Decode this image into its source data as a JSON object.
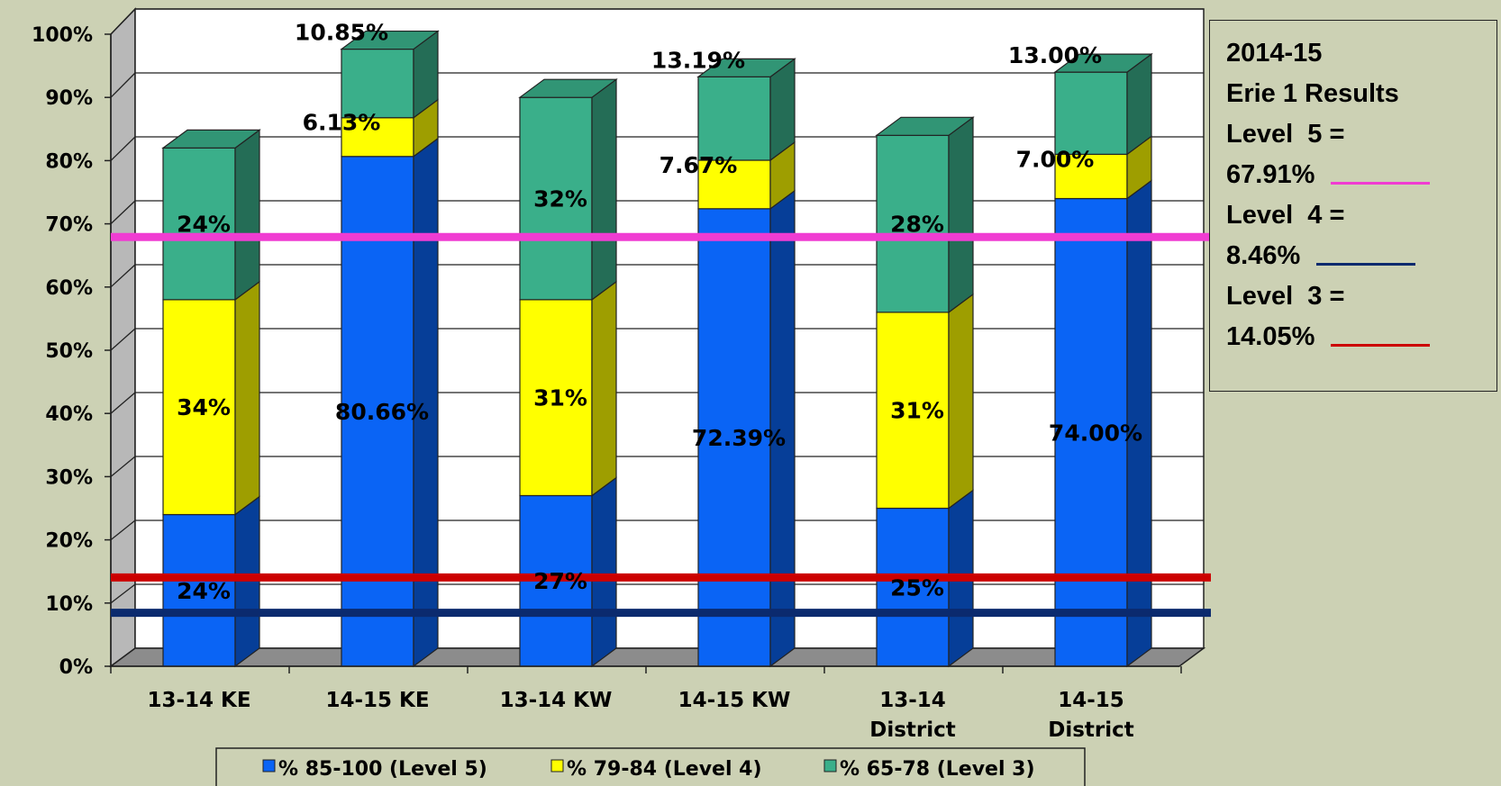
{
  "chart_data": {
    "type": "bar",
    "stacked": true,
    "categories": [
      [
        "13-14 KE"
      ],
      [
        "14-15 KE"
      ],
      [
        "13-14 KW"
      ],
      [
        "14-15 KW"
      ],
      [
        "13-14",
        "District"
      ],
      [
        "14-15",
        "District"
      ]
    ],
    "series": [
      {
        "name": "% 85-100 (Level 5)",
        "color": "#0a64f5",
        "values": [
          24,
          80.66,
          27,
          72.39,
          25,
          74.0
        ],
        "labels": [
          "24%",
          "80.66%",
          "27%",
          "72.39%",
          "25%",
          "74.00%"
        ]
      },
      {
        "name": "% 79-84 (Level 4)",
        "color": "#ffff00",
        "values": [
          34,
          6.13,
          31,
          7.67,
          31,
          7.0
        ],
        "labels": [
          "34%",
          "6.13%",
          "31%",
          "7.67%",
          "31%",
          "7.00%"
        ]
      },
      {
        "name": "% 65-78 (Level 3)",
        "color": "#3aaf8a",
        "values": [
          24,
          10.85,
          32,
          13.19,
          28,
          13.0
        ],
        "labels": [
          "24%",
          "10.85%",
          "32%",
          "13.19%",
          "28%",
          "13.00%"
        ]
      }
    ],
    "yticks": [
      "0%",
      "10%",
      "20%",
      "30%",
      "40%",
      "50%",
      "60%",
      "70%",
      "80%",
      "90%",
      "100%"
    ],
    "ylim": [
      0,
      100
    ],
    "grid": true,
    "legend_position": "bottom",
    "reference_lines": [
      {
        "value": 67.91,
        "color": "#f03cd2"
      },
      {
        "value": 14.05,
        "color": "#cc0000"
      },
      {
        "value": 8.46,
        "color": "#0b2a6e"
      }
    ]
  },
  "info_box": {
    "title": "2014-15",
    "subtitle": "Erie 1 Results",
    "level5_label": "Level  5 =",
    "level5_value": "67.91%",
    "level5_color": "#f03cd2",
    "level4_label": "Level  4 =",
    "level4_value": "8.46%",
    "level4_color": "#0b2a6e",
    "level3_label": "Level  3 =",
    "level3_value": "14.05%",
    "level3_color": "#cc0000"
  }
}
